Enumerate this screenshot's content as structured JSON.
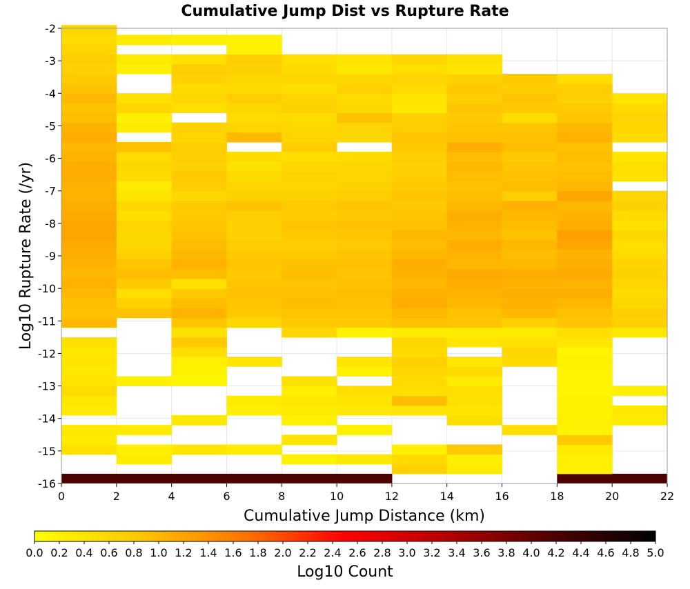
{
  "chart_data": {
    "type": "heatmap",
    "title": "Cumulative Jump Dist vs Rupture Rate",
    "xlabel": "Cumulative Jump Distance (km)",
    "ylabel": "Log10 Rupture Rate (/yr)",
    "xlim": [
      0,
      22
    ],
    "ylim": [
      -16,
      -2
    ],
    "x_ticks": [
      "0",
      "2",
      "4",
      "6",
      "8",
      "10",
      "12",
      "14",
      "16",
      "18",
      "20",
      "22"
    ],
    "y_ticks": [
      "-2",
      "-3",
      "-4",
      "-5",
      "-6",
      "-7",
      "-8",
      "-9",
      "-10",
      "-11",
      "-12",
      "-13",
      "-14",
      "-15",
      "-16"
    ],
    "x_bin_width": 2,
    "y_bin_height": 0.3,
    "y_bin_base": -16,
    "colorbar": {
      "label": "Log10 Count",
      "range": [
        0,
        5
      ],
      "ticks": [
        "0.0",
        "0.2",
        "0.4",
        "0.6",
        "0.8",
        "1.0",
        "1.2",
        "1.4",
        "1.6",
        "1.8",
        "2.0",
        "2.2",
        "2.4",
        "2.6",
        "2.8",
        "3.0",
        "3.2",
        "3.4",
        "3.6",
        "3.8",
        "4.0",
        "4.2",
        "4.4",
        "4.6",
        "4.8",
        "5.0"
      ],
      "colors": [
        "#ffff00",
        "#ffc800",
        "#ff7800",
        "#ff0000",
        "#b40000",
        "#500000",
        "#000000"
      ]
    },
    "columns": [
      {
        "x": [
          0,
          2
        ],
        "bins": {
          "0": 4.2,
          "3": 0.45,
          "4": 0.3,
          "5": 0.35,
          "7": 0.3,
          "8": 0.35,
          "9": 0.55,
          "10": 0.4,
          "11": 0.35,
          "12": 0.4,
          "13": 0.35,
          "14": 0.45,
          "16": 1.0,
          "17": 0.9,
          "18": 0.95,
          "19": 1.0,
          "20": 1.05,
          "21": 1.0,
          "22": 1.05,
          "23": 1.1,
          "24": 1.15,
          "25": 1.2,
          "26": 1.2,
          "27": 1.15,
          "28": 1.1,
          "29": 1.05,
          "30": 1.05,
          "31": 1.1,
          "32": 1.1,
          "33": 1.05,
          "34": 1.0,
          "35": 1.1,
          "36": 1.05,
          "37": 0.95,
          "38": 0.9,
          "39": 1.0,
          "40": 0.9,
          "41": 0.8,
          "42": 0.7,
          "43": 0.75,
          "44": 0.65,
          "45": 0.55,
          "46": 0.6
        }
      },
      {
        "x": [
          2,
          4
        ],
        "bins": {
          "0": 4.2,
          "2": 0.3,
          "3": 0.25,
          "5": 0.3,
          "10": 0.25,
          "17": 0.9,
          "18": 0.7,
          "19": 0.5,
          "20": 0.8,
          "21": 0.95,
          "22": 0.85,
          "23": 0.7,
          "24": 0.6,
          "25": 0.6,
          "26": 0.65,
          "27": 0.5,
          "28": 0.6,
          "29": 0.4,
          "30": 0.3,
          "31": 0.55,
          "32": 0.6,
          "33": 0.55,
          "34": 0.9,
          "36": 0.3,
          "37": 0.25,
          "38": 0.6,
          "39": 0.45,
          "42": 0.25,
          "43": 0.3,
          "45": 0.3
        }
      },
      {
        "x": [
          4,
          6
        ],
        "bins": {
          "0": 4.2,
          "3": 0.4,
          "6": 0.35,
          "10": 0.15,
          "11": 0.2,
          "12": 0.25,
          "13": 0.5,
          "14": 0.8,
          "15": 0.45,
          "16": 0.85,
          "17": 1.05,
          "18": 0.95,
          "19": 0.8,
          "20": 0.45,
          "21": 0.95,
          "22": 1.05,
          "23": 1.0,
          "24": 0.95,
          "25": 0.9,
          "26": 0.85,
          "27": 0.8,
          "28": 0.8,
          "29": 0.6,
          "30": 0.75,
          "31": 0.8,
          "32": 0.7,
          "33": 0.75,
          "34": 0.75,
          "35": 0.65,
          "36": 0.7,
          "38": 0.5,
          "39": 0.6,
          "40": 0.55,
          "41": 0.7,
          "42": 0.75,
          "43": 0.45,
          "45": 0.25
        }
      },
      {
        "x": [
          6,
          8
        ],
        "bins": {
          "0": 4.2,
          "3": 0.3,
          "7": 0.25,
          "8": 0.3,
          "12": 0.4,
          "16": 0.6,
          "17": 0.8,
          "18": 0.85,
          "19": 0.9,
          "20": 0.85,
          "21": 0.8,
          "22": 0.85,
          "23": 0.8,
          "24": 0.75,
          "25": 0.7,
          "26": 0.7,
          "27": 0.75,
          "28": 0.9,
          "29": 0.7,
          "30": 0.65,
          "31": 0.55,
          "32": 0.45,
          "33": 0.55,
          "35": 1.0,
          "36": 0.65,
          "37": 0.55,
          "38": 0.6,
          "39": 0.75,
          "40": 0.55,
          "41": 0.6,
          "42": 0.7,
          "43": 0.75,
          "44": 0.2,
          "45": 0.2
        }
      },
      {
        "x": [
          8,
          10
        ],
        "bins": {
          "0": 4.2,
          "2": 0.2,
          "4": 0.4,
          "6": 0.25,
          "7": 0.3,
          "8": 0.35,
          "9": 0.25,
          "10": 0.45,
          "15": 0.6,
          "16": 0.8,
          "17": 0.85,
          "18": 0.95,
          "19": 0.9,
          "20": 0.85,
          "21": 0.95,
          "22": 0.9,
          "23": 0.8,
          "24": 0.75,
          "25": 0.8,
          "26": 0.85,
          "27": 0.75,
          "28": 0.8,
          "29": 0.7,
          "30": 0.65,
          "31": 0.7,
          "32": 0.6,
          "33": 0.5,
          "34": 0.75,
          "35": 0.65,
          "36": 0.6,
          "37": 0.55,
          "38": 0.7,
          "39": 0.65,
          "40": 0.5,
          "41": 0.6,
          "42": 0.55,
          "43": 0.5
        }
      },
      {
        "x": [
          10,
          12
        ],
        "bins": {
          "0": 4.2,
          "2": 0.35,
          "5": 0.25,
          "7": 0.35,
          "8": 0.4,
          "9": 0.5,
          "11": 0.2,
          "12": 0.4,
          "15": 0.2,
          "16": 0.8,
          "17": 0.85,
          "18": 0.9,
          "19": 0.95,
          "20": 0.9,
          "21": 0.85,
          "22": 0.9,
          "23": 0.85,
          "24": 0.8,
          "25": 0.85,
          "26": 0.9,
          "27": 0.8,
          "28": 0.85,
          "29": 0.75,
          "30": 0.7,
          "31": 0.65,
          "32": 0.6,
          "33": 0.55,
          "35": 0.6,
          "36": 0.65,
          "37": 0.9,
          "38": 0.6,
          "39": 0.55,
          "40": 0.7,
          "41": 0.6,
          "42": 0.35,
          "43": 0.4
        }
      },
      {
        "x": [
          12,
          14
        ],
        "bins": {
          "1": 0.7,
          "2": 0.55,
          "3": 0.25,
          "7": 0.4,
          "8": 0.95,
          "9": 0.5,
          "10": 0.55,
          "11": 0.6,
          "12": 0.7,
          "13": 0.55,
          "14": 0.6,
          "15": 0.3,
          "16": 0.9,
          "17": 1.0,
          "18": 1.1,
          "19": 1.05,
          "20": 1.0,
          "21": 1.05,
          "22": 1.1,
          "23": 1.0,
          "24": 0.95,
          "25": 1.0,
          "26": 0.9,
          "27": 0.85,
          "28": 0.8,
          "29": 0.85,
          "30": 0.8,
          "31": 0.75,
          "32": 0.7,
          "33": 0.75,
          "34": 0.8,
          "35": 0.85,
          "36": 0.75,
          "37": 0.7,
          "38": 0.35,
          "39": 0.4,
          "40": 0.55,
          "41": 0.65,
          "42": 0.5,
          "43": 0.6
        }
      },
      {
        "x": [
          14,
          16
        ],
        "bins": {
          "1": 0.3,
          "2": 0.25,
          "3": 0.8,
          "6": 0.5,
          "7": 0.4,
          "8": 0.45,
          "9": 0.5,
          "10": 0.3,
          "11": 0.55,
          "12": 0.35,
          "14": 0.4,
          "15": 0.3,
          "16": 0.85,
          "17": 0.9,
          "18": 1.0,
          "19": 1.05,
          "20": 1.1,
          "21": 1.15,
          "22": 1.0,
          "23": 1.05,
          "24": 1.1,
          "25": 1.0,
          "26": 1.05,
          "27": 1.1,
          "28": 1.0,
          "29": 0.95,
          "30": 0.9,
          "31": 0.95,
          "32": 1.0,
          "33": 0.95,
          "34": 1.1,
          "35": 0.9,
          "36": 0.85,
          "37": 0.8,
          "38": 0.85,
          "39": 0.75,
          "40": 0.8,
          "41": 0.7,
          "42": 0.4,
          "43": 0.45
        }
      },
      {
        "x": [
          16,
          18
        ],
        "bins": {
          "5": 0.5,
          "12": 0.55,
          "13": 0.6,
          "14": 0.45,
          "15": 0.3,
          "16": 0.7,
          "17": 1.0,
          "18": 1.05,
          "19": 1.1,
          "20": 1.05,
          "21": 1.1,
          "22": 1.0,
          "23": 0.95,
          "24": 1.0,
          "25": 0.9,
          "26": 0.95,
          "27": 1.0,
          "28": 1.05,
          "29": 0.75,
          "30": 0.95,
          "31": 0.9,
          "32": 0.85,
          "33": 0.8,
          "34": 0.95,
          "35": 0.9,
          "36": 0.85,
          "37": 0.5,
          "38": 0.8,
          "39": 0.85,
          "40": 0.75,
          "41": 0.8
        }
      },
      {
        "x": [
          18,
          20
        ],
        "bins": {
          "0": 4.2,
          "1": 0.25,
          "2": 0.25,
          "3": 0.3,
          "4": 0.8,
          "5": 0.2,
          "6": 0.25,
          "7": 0.2,
          "8": 0.2,
          "9": 0.15,
          "10": 0.15,
          "11": 0.15,
          "12": 0.2,
          "13": 0.15,
          "14": 0.4,
          "15": 0.5,
          "16": 0.85,
          "17": 0.9,
          "18": 1.0,
          "19": 1.1,
          "20": 1.05,
          "21": 1.15,
          "22": 1.1,
          "23": 1.05,
          "24": 1.2,
          "25": 1.25,
          "26": 1.1,
          "27": 1.05,
          "28": 1.0,
          "29": 1.2,
          "30": 1.0,
          "31": 0.95,
          "32": 0.9,
          "33": 0.95,
          "34": 0.9,
          "35": 1.05,
          "36": 1.0,
          "37": 0.85,
          "38": 0.8,
          "39": 0.7,
          "40": 0.75,
          "41": 0.5
        }
      },
      {
        "x": [
          20,
          22
        ],
        "bins": {
          "0": 4.2,
          "6": 0.3,
          "7": 0.35,
          "9": 0.25,
          "15": 0.35,
          "16": 0.7,
          "17": 0.75,
          "18": 0.6,
          "19": 0.55,
          "20": 0.65,
          "21": 0.7,
          "22": 0.65,
          "23": 0.55,
          "24": 0.5,
          "25": 0.6,
          "26": 0.45,
          "27": 0.55,
          "28": 0.7,
          "29": 0.6,
          "31": 0.45,
          "32": 0.5,
          "33": 0.4,
          "35": 0.55,
          "36": 0.6,
          "37": 0.65,
          "38": 0.55,
          "39": 0.4
        }
      }
    ]
  }
}
